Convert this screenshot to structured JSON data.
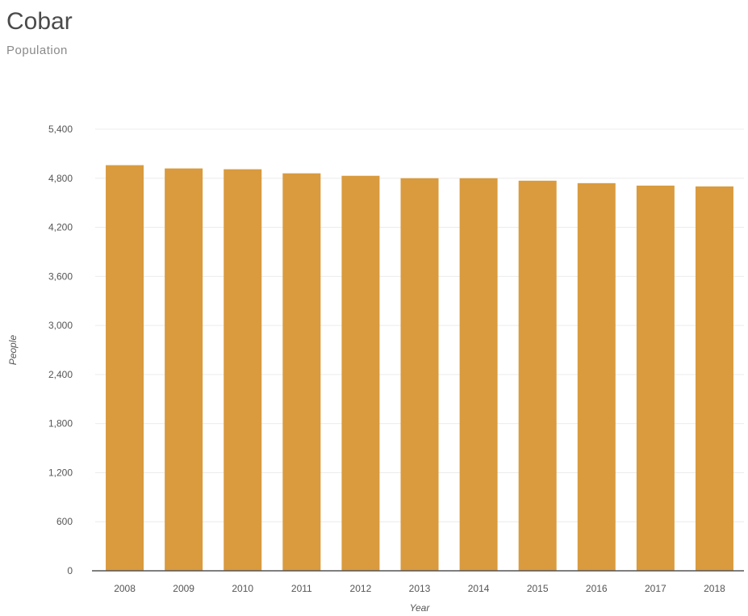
{
  "header": {
    "title": "Cobar",
    "subtitle": "Population"
  },
  "colors": {
    "bar": "#D99B3E",
    "grid": "#ECECEC"
  },
  "chart_data": {
    "type": "bar",
    "title": "Cobar",
    "subtitle": "Population",
    "xlabel": "Year",
    "ylabel": "People",
    "categories": [
      "2008",
      "2009",
      "2010",
      "2011",
      "2012",
      "2013",
      "2014",
      "2015",
      "2016",
      "2017",
      "2018"
    ],
    "series": [
      {
        "values": [
          4960,
          4920,
          4910,
          4860,
          4830,
          4800,
          4800,
          4770,
          4740,
          4710,
          4700
        ]
      }
    ],
    "ylim": [
      0,
      5400
    ],
    "yticks": [
      0,
      600,
      1200,
      1800,
      2400,
      3000,
      3600,
      4200,
      4800,
      5400
    ],
    "ytick_labels": [
      "0",
      "600",
      "1,200",
      "1,800",
      "2,400",
      "3,000",
      "3,600",
      "4,200",
      "4,800",
      "5,400"
    ],
    "grid": true,
    "legend": "none"
  }
}
